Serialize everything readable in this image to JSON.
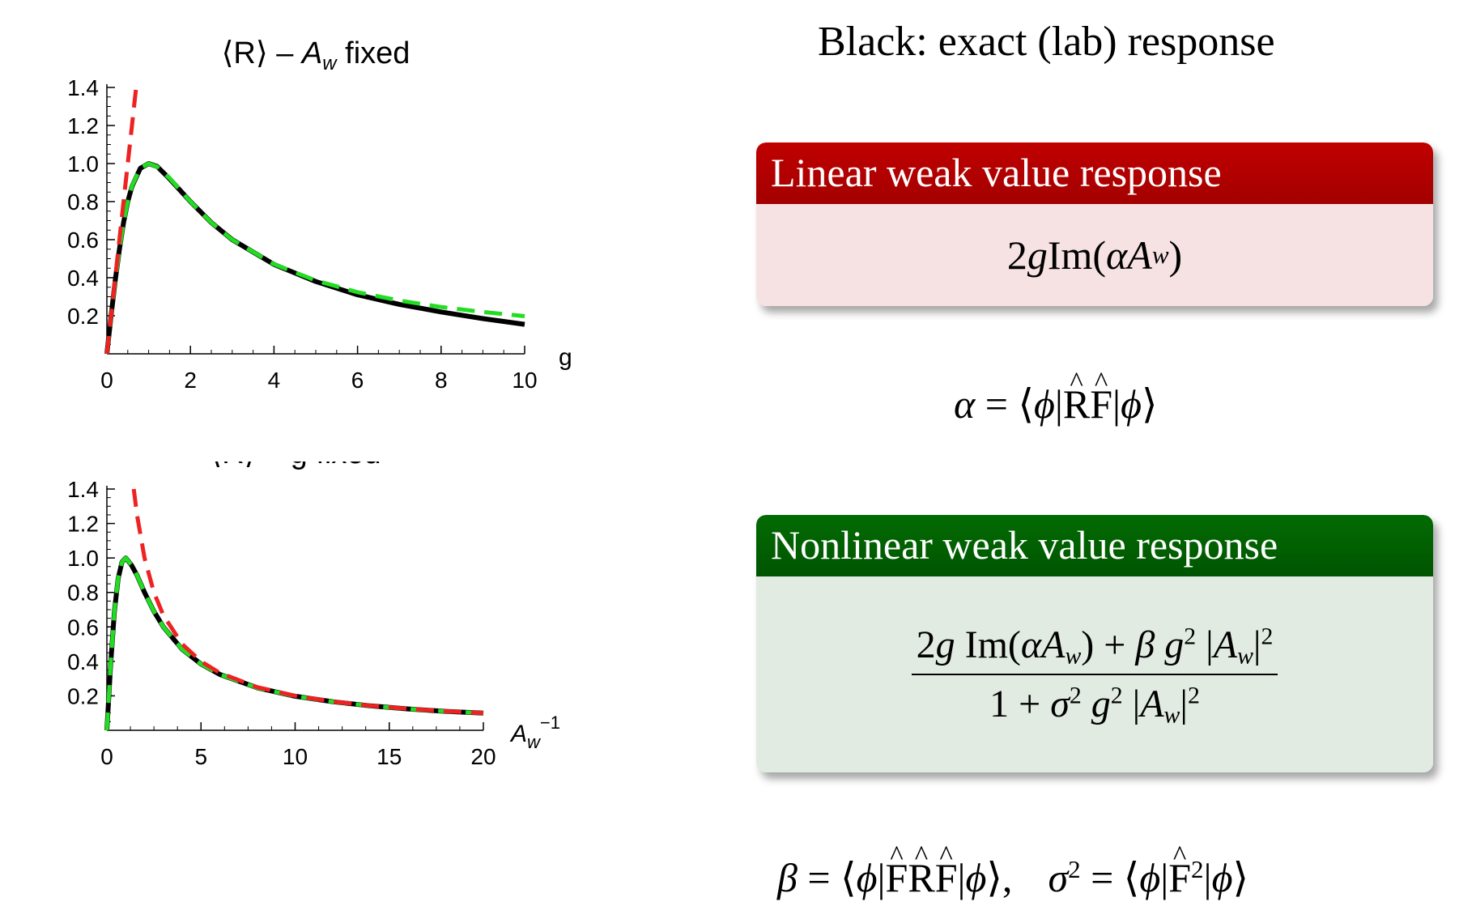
{
  "chart_data": [
    {
      "type": "line",
      "title": "⟨R⟩ – ",
      "title_var": "A",
      "title_sub": "w",
      "title_tail": " fixed",
      "xlabel": "g",
      "ylabel": "",
      "xlim": [
        0,
        10
      ],
      "ylim": [
        0,
        1.4
      ],
      "xticks": [
        0,
        2,
        4,
        6,
        8,
        10
      ],
      "yticks": [
        0.2,
        0.4,
        0.6,
        0.8,
        1.0,
        1.2,
        1.4
      ],
      "xtick_labels": [
        "0",
        "2",
        "4",
        "6",
        "8",
        "10"
      ],
      "ytick_labels": [
        "0.2",
        "0.4",
        "0.6",
        "0.8",
        "1.0",
        "1.2",
        "1.4"
      ],
      "grid": false,
      "series": [
        {
          "color": "#000000",
          "style": "solid",
          "x": [
            0,
            0.1,
            0.2,
            0.3,
            0.4,
            0.5,
            0.6,
            0.8,
            1.0,
            1.2,
            1.5,
            2.0,
            2.5,
            3.0,
            4.0,
            5.0,
            6.0,
            7.0,
            8.0,
            9.0,
            10.0
          ],
          "y": [
            0,
            0.2,
            0.385,
            0.55,
            0.69,
            0.8,
            0.88,
            0.975,
            1.0,
            0.985,
            0.92,
            0.8,
            0.69,
            0.6,
            0.47,
            0.38,
            0.31,
            0.26,
            0.22,
            0.185,
            0.155
          ]
        },
        {
          "color": "#22dd22",
          "style": "dashed",
          "x": [
            0,
            0.1,
            0.2,
            0.3,
            0.4,
            0.5,
            0.6,
            0.8,
            1.0,
            1.2,
            1.5,
            2.0,
            2.5,
            3.0,
            4.0,
            5.0,
            6.0,
            7.0,
            8.0,
            9.0,
            10.0
          ],
          "y": [
            0,
            0.198,
            0.385,
            0.55,
            0.69,
            0.8,
            0.882,
            0.976,
            1.0,
            0.984,
            0.923,
            0.8,
            0.69,
            0.6,
            0.471,
            0.385,
            0.324,
            0.28,
            0.246,
            0.22,
            0.198
          ]
        },
        {
          "color": "#ee2222",
          "style": "dashed",
          "x": [
            0,
            0.1,
            0.2,
            0.3,
            0.4,
            0.5,
            0.6,
            0.7
          ],
          "y": [
            0,
            0.2,
            0.4,
            0.6,
            0.8,
            1.0,
            1.2,
            1.4
          ]
        }
      ]
    },
    {
      "type": "line",
      "title": "⟨R⟩ – g fixed",
      "title_var": "",
      "title_sub": "",
      "title_tail": "",
      "xlabel_var": "A",
      "xlabel_sub": "w",
      "xlabel_sup": "−1",
      "ylabel": "",
      "xlim": [
        0,
        20
      ],
      "ylim": [
        0,
        1.4
      ],
      "xticks": [
        0,
        5,
        10,
        15,
        20
      ],
      "yticks": [
        0.2,
        0.4,
        0.6,
        0.8,
        1.0,
        1.2,
        1.4
      ],
      "xtick_labels": [
        "0",
        "5",
        "10",
        "15",
        "20"
      ],
      "ytick_labels": [
        "0.2",
        "0.4",
        "0.6",
        "0.8",
        "1.0",
        "1.2",
        "1.4"
      ],
      "grid": false,
      "series": [
        {
          "color": "#000000",
          "style": "solid",
          "x": [
            0,
            0.2,
            0.4,
            0.6,
            0.8,
            1.0,
            1.3,
            1.6,
            2.0,
            2.5,
            3.0,
            4.0,
            5.0,
            6.0,
            8.0,
            10.0,
            12.0,
            14.0,
            16.0,
            18.0,
            20.0
          ],
          "y": [
            0,
            0.385,
            0.69,
            0.88,
            0.976,
            1.0,
            0.96,
            0.9,
            0.8,
            0.69,
            0.6,
            0.47,
            0.385,
            0.324,
            0.246,
            0.198,
            0.166,
            0.142,
            0.124,
            0.11,
            0.1
          ]
        },
        {
          "color": "#22dd22",
          "style": "dashed",
          "x": [
            0,
            0.2,
            0.4,
            0.6,
            0.8,
            1.0,
            1.3,
            1.6,
            2.0,
            2.5,
            3.0,
            4.0,
            5.0,
            6.0,
            8.0,
            10.0,
            12.0,
            14.0,
            16.0,
            18.0,
            20.0
          ],
          "y": [
            0,
            0.385,
            0.69,
            0.882,
            0.976,
            1.0,
            0.96,
            0.9,
            0.8,
            0.69,
            0.6,
            0.47,
            0.385,
            0.324,
            0.246,
            0.198,
            0.166,
            0.142,
            0.124,
            0.11,
            0.1
          ]
        },
        {
          "color": "#ee2222",
          "style": "dashed",
          "x": [
            1.43,
            1.6,
            2.0,
            2.5,
            3.0,
            4.0,
            5.0,
            6.0,
            8.0,
            10.0,
            12.0,
            14.0,
            16.0,
            18.0,
            20.0
          ],
          "y": [
            1.4,
            1.25,
            1.0,
            0.8,
            0.667,
            0.5,
            0.4,
            0.333,
            0.25,
            0.2,
            0.167,
            0.143,
            0.125,
            0.111,
            0.1
          ]
        }
      ]
    }
  ],
  "legend_note": "Black: exact (lab) response",
  "linear_box": {
    "title": "Linear weak value response",
    "formula_prefix": "2",
    "formula_g": "g",
    "formula_im": " Im(",
    "formula_alpha": "α",
    "formula_A": " A",
    "formula_sub": "w",
    "formula_close": ")"
  },
  "alpha_eq": {
    "lhs": "α",
    "eq": " = ⟨",
    "phi1": "ϕ",
    "bar1": "|",
    "op1": "R",
    "op2": "F",
    "bar2": "|",
    "phi2": "ϕ",
    "close": "⟩"
  },
  "nonlinear_box": {
    "title": "Nonlinear weak value response",
    "num_a": "2",
    "num_g": "g",
    "num_im": " Im(",
    "num_alpha": "α",
    "num_A": "A",
    "num_sub": "w",
    "num_plus": ") + ",
    "num_beta": "β",
    "num_g2": " g",
    "num_sup2": "2",
    "num_abs": " |",
    "num_A2": "A",
    "num_sub2": "w",
    "num_abs_close": "|",
    "num_sup3": "2",
    "den_one": "1 + ",
    "den_sigma": "σ",
    "den_sup1": "2",
    "den_g": " g",
    "den_sup2": "2",
    "den_abs": " |",
    "den_A": "A",
    "den_sub": "w",
    "den_abs_close": "|",
    "den_sup3": "2"
  },
  "beta_eq": {
    "beta": "β",
    "eq1": " = ⟨",
    "phi1": "ϕ",
    "bar1": "|",
    "op1": "F",
    "op2": "R",
    "op3": "F",
    "bar2": "|",
    "phi2": "ϕ",
    "close1": "⟩,",
    "sigma": "σ",
    "sig_sup": "2",
    "eq2": " = ⟨",
    "phi3": "ϕ",
    "bar3": "|",
    "op4": "F",
    "op4_sup": "2",
    "bar4": "|",
    "phi4": "ϕ",
    "close2": "⟩"
  }
}
